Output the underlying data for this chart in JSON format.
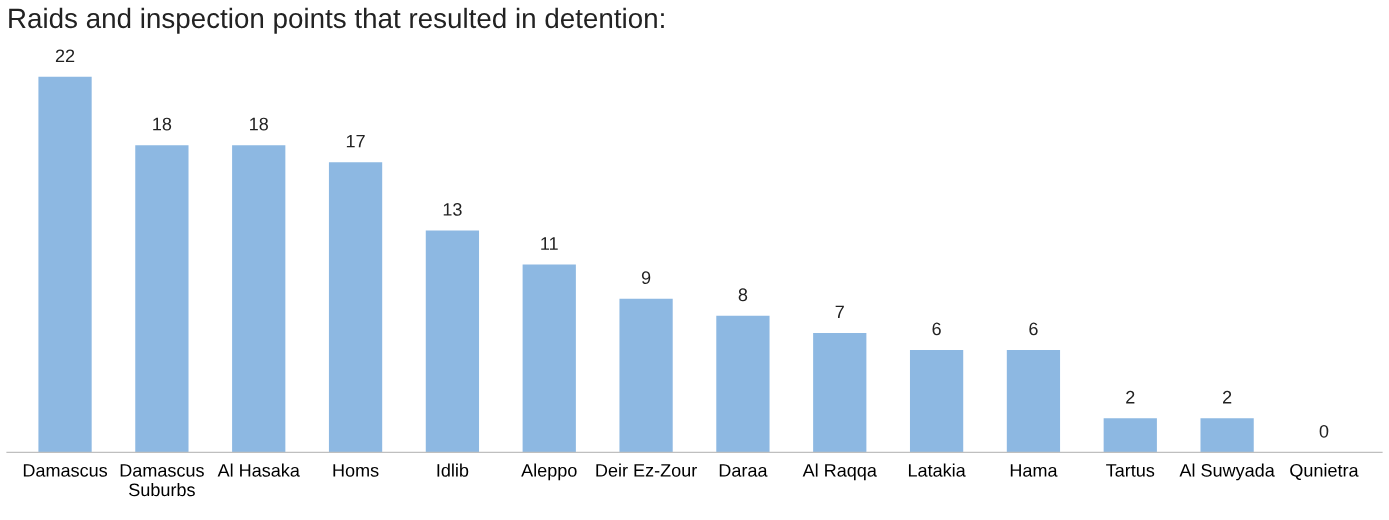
{
  "chart_data": {
    "type": "bar",
    "title": "Raids and inspection points that resulted in detention:",
    "categories": [
      "Damascus",
      "Damascus\nSuburbs",
      "Al Hasaka",
      "Homs",
      "Idlib",
      "Aleppo",
      "Deir Ez-Zour",
      "Daraa",
      "Al Raqqa",
      "Latakia",
      "Hama",
      "Tartus",
      "Al Suwyada",
      "Qunietra"
    ],
    "values": [
      22,
      18,
      18,
      17,
      13,
      11,
      9,
      8,
      7,
      6,
      6,
      2,
      2,
      0
    ],
    "color": "#8db8e2",
    "data_labels": true,
    "grid": false,
    "legend": false
  }
}
